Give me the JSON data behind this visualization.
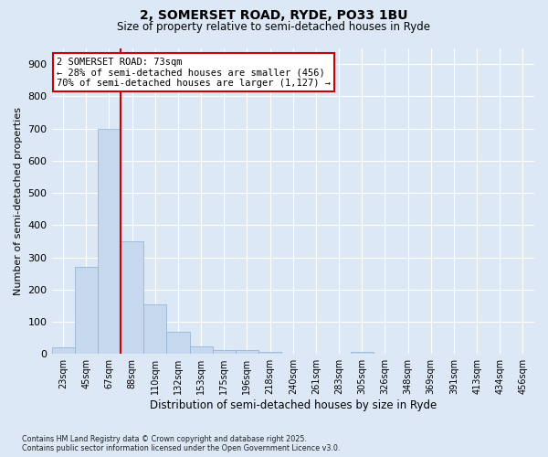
{
  "title_line1": "2, SOMERSET ROAD, RYDE, PO33 1BU",
  "title_line2": "Size of property relative to semi-detached houses in Ryde",
  "xlabel": "Distribution of semi-detached houses by size in Ryde",
  "ylabel": "Number of semi-detached properties",
  "bar_values": [
    20,
    270,
    700,
    350,
    155,
    68,
    22,
    11,
    12,
    7,
    0,
    0,
    0,
    6,
    0,
    0,
    0,
    0,
    0,
    0,
    0
  ],
  "categories": [
    "23sqm",
    "45sqm",
    "67sqm",
    "88sqm",
    "110sqm",
    "132sqm",
    "153sqm",
    "175sqm",
    "196sqm",
    "218sqm",
    "240sqm",
    "261sqm",
    "283sqm",
    "305sqm",
    "326sqm",
    "348sqm",
    "369sqm",
    "391sqm",
    "413sqm",
    "434sqm",
    "456sqm"
  ],
  "bar_color": "#c5d8ee",
  "bar_edge_color": "#8ab0d4",
  "vline_color": "#cc0000",
  "vline_index": 2,
  "annotation_title": "2 SOMERSET ROAD: 73sqm",
  "annotation_line1": "← 28% of semi-detached houses are smaller (456)",
  "annotation_line2": "70% of semi-detached houses are larger (1,127) →",
  "ylim_max": 950,
  "yticks": [
    0,
    100,
    200,
    300,
    400,
    500,
    600,
    700,
    800,
    900
  ],
  "bg_color": "#dce8f5",
  "grid_color": "#ffffff",
  "title_fontsize": 10,
  "subtitle_fontsize": 8.5,
  "footer_line1": "Contains HM Land Registry data © Crown copyright and database right 2025.",
  "footer_line2": "Contains public sector information licensed under the Open Government Licence v3.0."
}
